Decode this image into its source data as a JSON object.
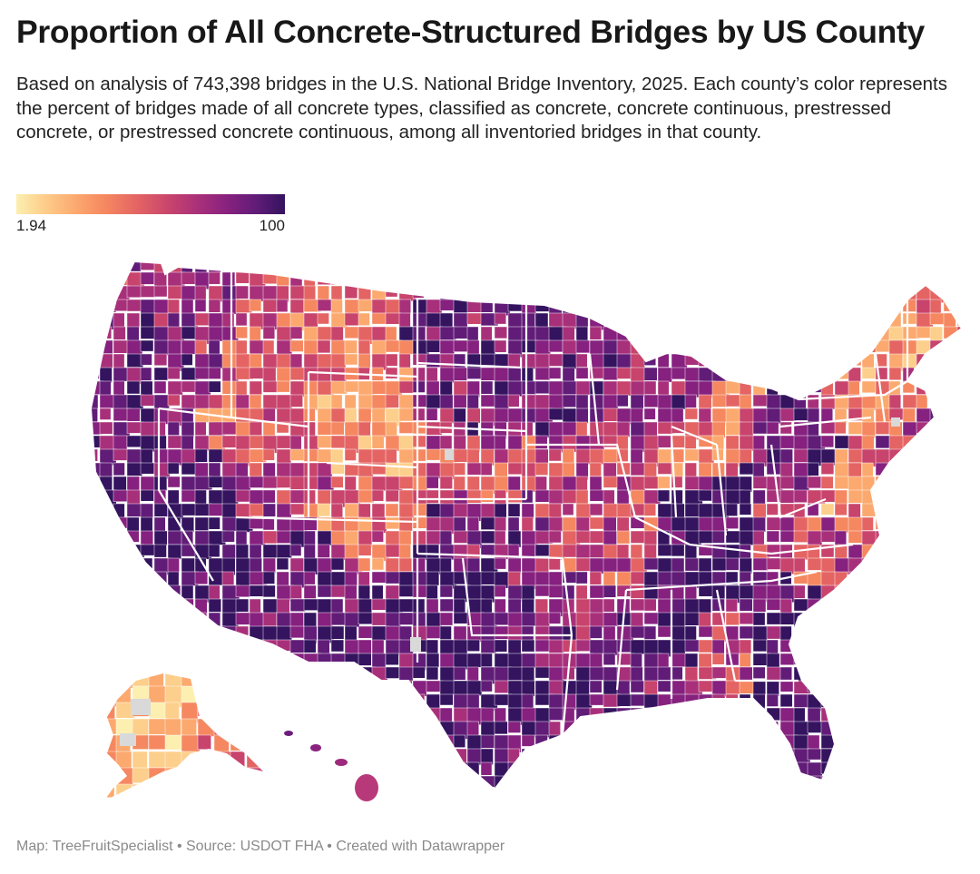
{
  "header": {
    "title": "Proportion of All Concrete-Structured Bridges by US County",
    "subtitle": "Based on analysis of 743,398 bridges in the U.S. National Bridge Inventory, 2025. Each county’s color represents the percent of bridges made of all concrete types, classified as concrete, concrete continuous, prestressed concrete, or prestressed concrete continuous, among all inventoried bridges in that county."
  },
  "legend": {
    "min_label": "1.94",
    "max_label": "100",
    "colors": [
      "#fcefb0",
      "#fdcf8c",
      "#fca96f",
      "#f58860",
      "#e46464",
      "#c8446d",
      "#a8307a",
      "#86217f",
      "#611c78",
      "#34135f"
    ],
    "nodata_color": "#d9d9d9"
  },
  "map": {
    "type": "choropleth",
    "geography": "US counties",
    "metric": "percent of bridges made of concrete types",
    "range": [
      1.94,
      100
    ]
  },
  "footer": {
    "text": "Map: TreeFruitSpecialist • Source: USDOT FHA • Created with Datawrapper"
  }
}
